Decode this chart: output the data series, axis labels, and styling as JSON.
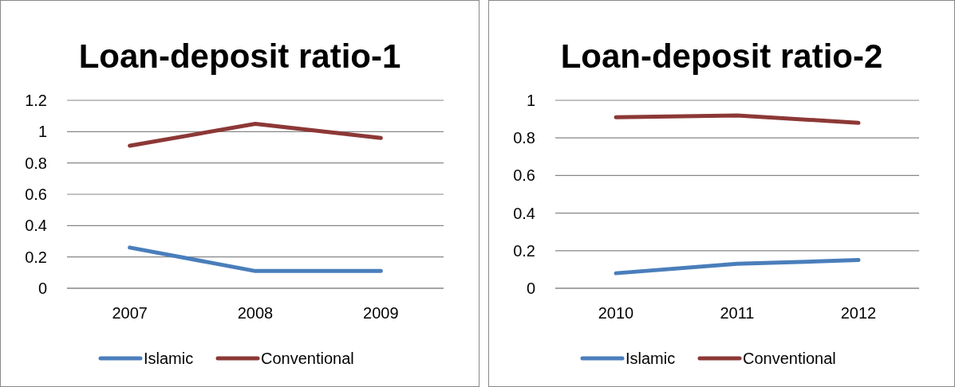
{
  "chart_data": [
    {
      "type": "line",
      "title": "Loan-deposit ratio-1",
      "categories": [
        "2007",
        "2008",
        "2009"
      ],
      "series": [
        {
          "name": "Islamic",
          "color": "#4a7ebb",
          "values": [
            0.26,
            0.11,
            0.11
          ]
        },
        {
          "name": "Conventional",
          "color": "#8c3836",
          "values": [
            0.91,
            1.05,
            0.96
          ]
        }
      ],
      "ylim": [
        0,
        1.2
      ],
      "yticks": [
        0,
        0.2,
        0.4,
        0.6,
        0.8,
        1,
        1.2
      ],
      "grid": "y",
      "legend": "bottom",
      "marker": "none",
      "line_style": "solid"
    },
    {
      "type": "line",
      "title": "Loan-deposit ratio-2",
      "categories": [
        "2010",
        "2011",
        "2012"
      ],
      "series": [
        {
          "name": "Islamic",
          "color": "#4a7ebb",
          "values": [
            0.08,
            0.13,
            0.15
          ]
        },
        {
          "name": "Conventional",
          "color": "#8c3836",
          "values": [
            0.91,
            0.92,
            0.88
          ]
        }
      ],
      "ylim": [
        0,
        1
      ],
      "yticks": [
        0,
        0.2,
        0.4,
        0.6,
        0.8,
        1
      ],
      "grid": "y",
      "legend": "bottom",
      "marker": "none",
      "line_style": "solid"
    }
  ]
}
